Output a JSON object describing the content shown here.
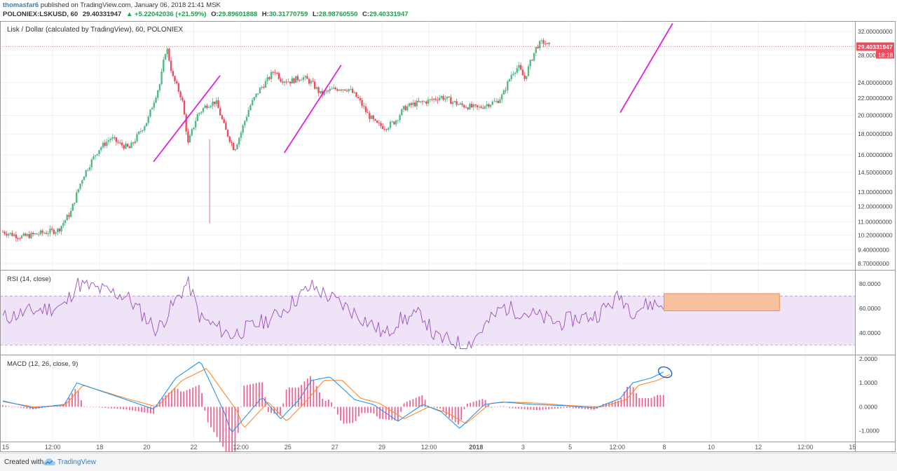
{
  "header": {
    "author": "thomasfar6",
    "published": "published on TradingView.com, January 06, 2018 21:41 MSK",
    "symbol": "POLONIEX:LSKUSD, 60",
    "last": "29.40331947",
    "change": "▲ +5.22042036 (+21.59%)",
    "o_label": "O:",
    "o_value": "29.89601888",
    "h_label": "H:",
    "h_value": "30.31770759",
    "l_label": "L:",
    "l_value": "28.98760550",
    "c_label": "C:",
    "c_value": "29.40331947"
  },
  "footer": {
    "created_with": "Created with",
    "brand": "TradingView"
  },
  "colors": {
    "up": "#53b987",
    "down": "#eb4d5c",
    "rsi": "#9c4dbf",
    "rsi_band": "#efe3f7",
    "macd": "#2196f3",
    "signal": "#ff8a2a",
    "hist": "#f06292",
    "trendline": "#e020e0",
    "price_line": "#eb4d5c"
  },
  "chart_data": [
    {
      "type": "candlestick",
      "title": "Lisk / Dollar (calculated by TradingView), 60, POLONIEX",
      "scale": "log",
      "y_ticks": [
        "32.00000000",
        "28.00000000",
        "24.00000000",
        "22.00000000",
        "20.00000000",
        "18.00000000",
        "16.00000000",
        "14.50000000",
        "13.00000000",
        "12.00000000",
        "11.00000000",
        "10.20000000",
        "9.40000000",
        "8.70000000"
      ],
      "price_label": "29.40331947",
      "countdown": "18:18",
      "x_labels": [
        "15",
        "12:00",
        "18",
        "20",
        "22",
        "12:00",
        "25",
        "27",
        "29",
        "12:00",
        "2018",
        "3",
        "5",
        "12:00",
        "8",
        "10",
        "12",
        "12:00",
        "15"
      ],
      "path": [
        [
          0,
          10.4
        ],
        [
          0.03,
          10.1
        ],
        [
          0.06,
          10.3
        ],
        [
          0.09,
          10.5
        ],
        [
          0.11,
          11.6
        ],
        [
          0.13,
          14.2
        ],
        [
          0.155,
          16.5
        ],
        [
          0.175,
          17.6
        ],
        [
          0.19,
          17.0
        ],
        [
          0.205,
          16.6
        ],
        [
          0.215,
          17.5
        ],
        [
          0.235,
          19.5
        ],
        [
          0.255,
          24.0
        ],
        [
          0.265,
          29.5
        ],
        [
          0.275,
          24.8
        ],
        [
          0.29,
          22.0
        ],
        [
          0.3,
          17.0
        ],
        [
          0.315,
          20.0
        ],
        [
          0.33,
          21.2
        ],
        [
          0.345,
          21.6
        ],
        [
          0.36,
          18.5
        ],
        [
          0.375,
          16.5
        ],
        [
          0.385,
          18.0
        ],
        [
          0.4,
          21.0
        ],
        [
          0.415,
          23.0
        ],
        [
          0.43,
          24.5
        ],
        [
          0.44,
          25.8
        ],
        [
          0.45,
          24.5
        ],
        [
          0.465,
          24.2
        ],
        [
          0.485,
          24.8
        ],
        [
          0.5,
          24.0
        ],
        [
          0.515,
          22.5
        ],
        [
          0.53,
          23.0
        ],
        [
          0.545,
          23.3
        ],
        [
          0.56,
          23.2
        ],
        [
          0.575,
          22.0
        ],
        [
          0.59,
          20.2
        ],
        [
          0.605,
          19.0
        ],
        [
          0.62,
          18.7
        ],
        [
          0.635,
          19.3
        ],
        [
          0.65,
          20.8
        ],
        [
          0.665,
          21.3
        ],
        [
          0.68,
          21.5
        ],
        [
          0.695,
          21.8
        ],
        [
          0.71,
          22.2
        ],
        [
          0.725,
          21.7
        ],
        [
          0.74,
          21.2
        ],
        [
          0.755,
          21.0
        ],
        [
          0.77,
          20.8
        ],
        [
          0.785,
          21.3
        ],
        [
          0.8,
          21.6
        ],
        [
          0.81,
          22.4
        ],
        [
          0.825,
          25.4
        ],
        [
          0.835,
          26.3
        ],
        [
          0.845,
          24.5
        ],
        [
          0.855,
          27.0
        ],
        [
          0.865,
          29.5
        ],
        [
          0.875,
          30.2
        ],
        [
          0.885,
          29.4
        ]
      ],
      "trendlines": [
        {
          "from": [
            0.244,
            15.4
          ],
          "to": [
            0.352,
            25.0
          ]
        },
        {
          "from": [
            0.456,
            16.2
          ],
          "to": [
            0.548,
            26.5
          ]
        },
        {
          "from": [
            1.0,
            20.3
          ],
          "to": [
            1.085,
            33.5
          ]
        }
      ]
    },
    {
      "type": "line",
      "title": "RSI (14, close)",
      "ylim": [
        25,
        88
      ],
      "y_ticks": [
        "80.0000",
        "60.0000",
        "40.0000"
      ],
      "bands": [
        30,
        70
      ],
      "path": [
        [
          0,
          52
        ],
        [
          0.05,
          58
        ],
        [
          0.1,
          62
        ],
        [
          0.12,
          80
        ],
        [
          0.2,
          70
        ],
        [
          0.25,
          42
        ],
        [
          0.3,
          82
        ],
        [
          0.32,
          52
        ],
        [
          0.37,
          38
        ],
        [
          0.44,
          53
        ],
        [
          0.5,
          78
        ],
        [
          0.55,
          63
        ],
        [
          0.6,
          46
        ],
        [
          0.62,
          38
        ],
        [
          0.64,
          50
        ],
        [
          0.68,
          55
        ],
        [
          0.7,
          36
        ],
        [
          0.73,
          33
        ],
        [
          0.75,
          28
        ],
        [
          0.78,
          45
        ],
        [
          0.81,
          61
        ],
        [
          0.85,
          56
        ],
        [
          0.9,
          48
        ],
        [
          0.93,
          52
        ],
        [
          0.96,
          54
        ],
        [
          1.0,
          70
        ],
        [
          1.02,
          58
        ],
        [
          1.05,
          64
        ],
        [
          1.07,
          62
        ]
      ],
      "box": {
        "x0": 1.071,
        "x1": 1.258,
        "y0": 58,
        "y1": 72
      }
    },
    {
      "type": "macd",
      "title": "MACD (12, 26, close, 9)",
      "ylim": [
        -1.3,
        2.0
      ],
      "y_ticks": [
        "2.0000",
        "1.0000",
        "0.0000",
        "-1.0000"
      ],
      "macd": [
        [
          0,
          0.25
        ],
        [
          0.05,
          -0.05
        ],
        [
          0.1,
          0.1
        ],
        [
          0.12,
          1.0
        ],
        [
          0.2,
          0.3
        ],
        [
          0.245,
          -0.1
        ],
        [
          0.28,
          1.2
        ],
        [
          0.32,
          1.9
        ],
        [
          0.36,
          -0.3
        ],
        [
          0.37,
          -1.1
        ],
        [
          0.42,
          0.4
        ],
        [
          0.45,
          -0.5
        ],
        [
          0.48,
          0.3
        ],
        [
          0.5,
          1.1
        ],
        [
          0.53,
          1.25
        ],
        [
          0.57,
          0.3
        ],
        [
          0.6,
          0.1
        ],
        [
          0.64,
          -0.6
        ],
        [
          0.68,
          0.1
        ],
        [
          0.71,
          -0.2
        ],
        [
          0.74,
          -0.9
        ],
        [
          0.78,
          0.1
        ],
        [
          0.81,
          0.2
        ],
        [
          0.86,
          0.1
        ],
        [
          0.91,
          0.05
        ],
        [
          0.96,
          -0.05
        ],
        [
          1.0,
          0.35
        ],
        [
          1.02,
          1.0
        ],
        [
          1.05,
          1.2
        ],
        [
          1.07,
          1.45
        ]
      ],
      "signal": [
        [
          0,
          0.22
        ],
        [
          0.05,
          0.0
        ],
        [
          0.1,
          0.05
        ],
        [
          0.13,
          0.9
        ],
        [
          0.2,
          0.35
        ],
        [
          0.25,
          0.0
        ],
        [
          0.29,
          1.1
        ],
        [
          0.33,
          1.6
        ],
        [
          0.38,
          -0.2
        ],
        [
          0.39,
          -0.9
        ],
        [
          0.43,
          0.2
        ],
        [
          0.46,
          -0.6
        ],
        [
          0.49,
          0.2
        ],
        [
          0.52,
          1.1
        ],
        [
          0.55,
          1.1
        ],
        [
          0.58,
          0.35
        ],
        [
          0.61,
          0.15
        ],
        [
          0.65,
          -0.5
        ],
        [
          0.69,
          0.0
        ],
        [
          0.72,
          -0.25
        ],
        [
          0.75,
          -0.7
        ],
        [
          0.79,
          0.15
        ],
        [
          0.82,
          0.2
        ],
        [
          0.87,
          0.15
        ],
        [
          0.92,
          0.05
        ],
        [
          0.97,
          0.0
        ],
        [
          1.01,
          0.3
        ],
        [
          1.03,
          0.9
        ],
        [
          1.06,
          1.1
        ],
        [
          1.08,
          1.35
        ]
      ],
      "highlight": [
        1.066,
        1.5
      ]
    }
  ]
}
